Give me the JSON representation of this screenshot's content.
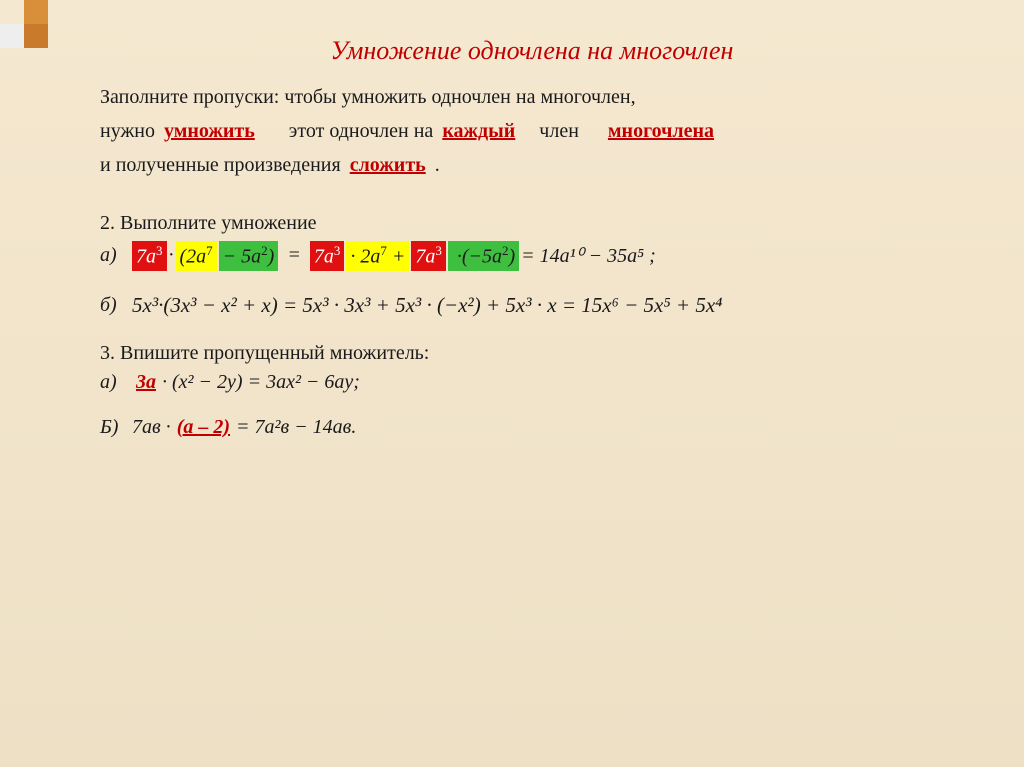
{
  "title": "Умножение одночлена на многочлен",
  "rule": {
    "line1_a": "Заполните пропуски: чтобы умножить одночлен на многочлен,",
    "line2_a": "нужно",
    "blank_mult": "умножить",
    "line2_b": "этот одночлен на",
    "blank_each": "каждый",
    "line2_c": "член",
    "blank_poly": "многочлена",
    "line3_a": "и полученные произведения",
    "blank_add": "сложить",
    "line3_b": "."
  },
  "task2": {
    "head": "2. Выполните умножение",
    "a": {
      "label": "а)",
      "p1": "7a",
      "p1e": "3",
      "dot": "·",
      "lp": "(",
      "p2a": "2a",
      "p2ae": "7",
      "minus": " − ",
      "p2b": "5a",
      "p2be": "2",
      "rp": ")",
      "eq": "=",
      "p3": "7a",
      "p3e": "3",
      "mid1": "· 2a",
      "mid1e": "7",
      "plus": " + ",
      "p4": "7a",
      "p4e": "3",
      "mid2": "·(−5a",
      "mid2e": "2",
      "mid2b": ")",
      "result": " = 14a¹⁰ − 35a⁵ ;"
    },
    "b": {
      "label": "б)",
      "expr": "5x³·(3x³ − x² + x) = 5x³ · 3x³ + 5x³ · (−x²) + 5x³ · x = 15x⁶ − 5x⁵ + 5x⁴"
    }
  },
  "task3": {
    "head": "3. Впишите пропущенный множитель:",
    "a": {
      "label": "а)",
      "ans": "3a",
      "rest": " · (x² − 2y) = 3ax² − 6ay;"
    },
    "b": {
      "label": "Б)",
      "lead": "7aв · ",
      "ans": "(a – 2)",
      "rest": " = 7a²в − 14aв."
    }
  },
  "colors": {
    "title": "#c00000",
    "blank": "#c00000",
    "hl_red_bg": "#e01010",
    "hl_red_fg": "#ffffff",
    "hl_yel_bg": "#ffff00",
    "hl_grn_bg": "#3fbf3f",
    "bg_top": "#f5e8d0",
    "bg_bot": "#ede0c5"
  },
  "fontsize": {
    "title": 26,
    "body": 20
  }
}
